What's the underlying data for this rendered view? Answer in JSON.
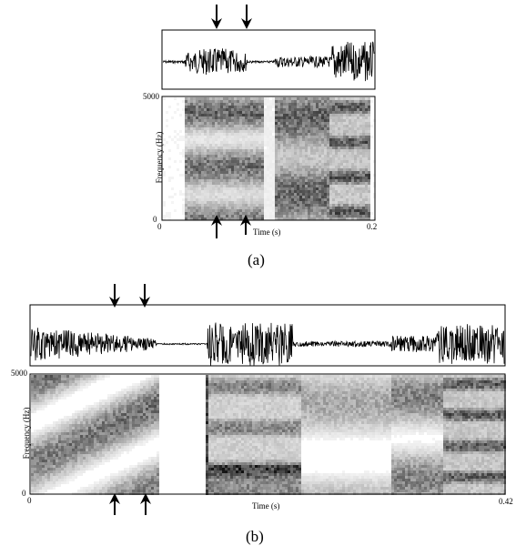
{
  "panel_a": {
    "caption": "(a)",
    "y_max": "5000",
    "y_min": "0",
    "x_min": "0",
    "x_max": "0.2",
    "ylabel": "Frequency (Hz)",
    "xlabel": "Time (s)"
  },
  "panel_b": {
    "caption": "(b)",
    "y_max": "5000",
    "y_min": "0",
    "x_min": "0",
    "x_max": "0.42",
    "ylabel": "Frequency (Hz)",
    "xlabel": "Time (s)"
  },
  "colors": {
    "ink": "#000000",
    "background": "#ffffff",
    "spectrogram_dark": "#222222",
    "spectrogram_light": "#f2f2f2"
  },
  "icons": [
    "down-arrow-icon",
    "up-arrow-icon"
  ]
}
